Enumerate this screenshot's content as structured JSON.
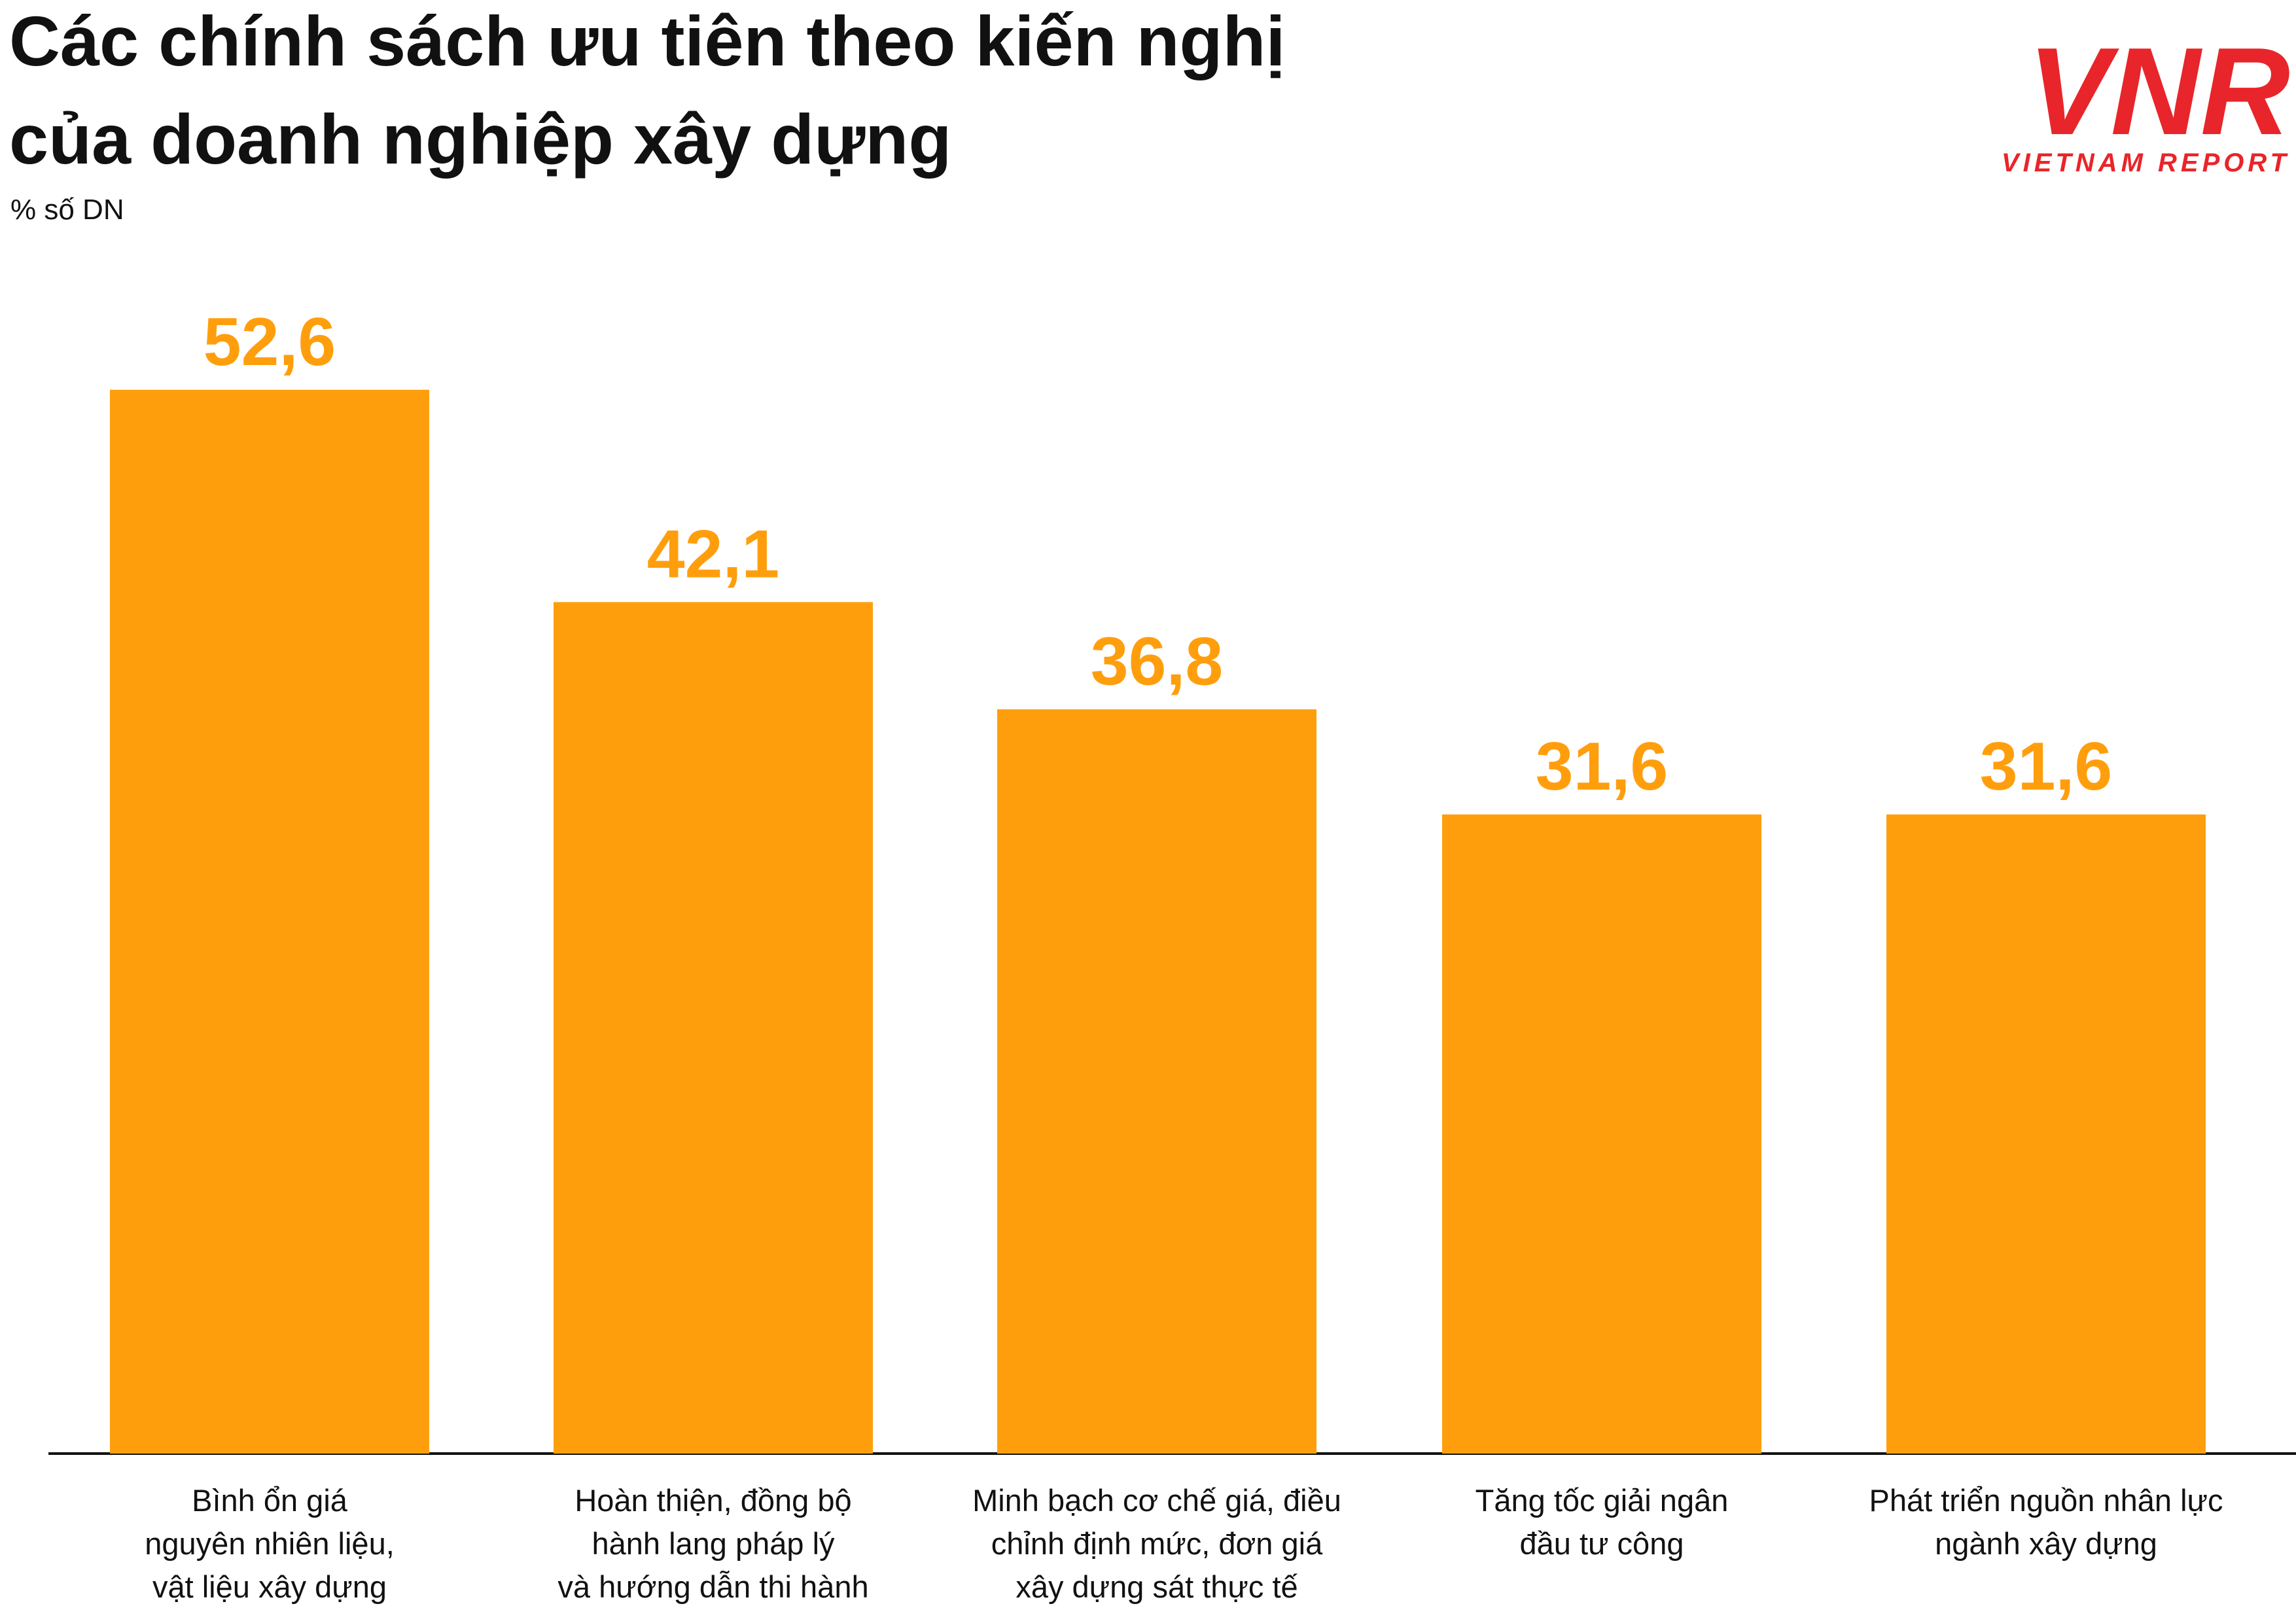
{
  "chart_data": {
    "type": "bar",
    "title": [
      "Các chính sách ưu tiên theo kiến nghị",
      "của doanh nghiệp xây dựng"
    ],
    "subtitle": "% số DN",
    "categories": [
      [
        "Bình ổn giá",
        "nguyên nhiên liệu,",
        "vật liệu xây dựng"
      ],
      [
        "Hoàn thiện, đồng bộ",
        "hành lang pháp lý",
        "và hướng dẫn thi hành"
      ],
      [
        "Minh bạch cơ chế giá, điều",
        "chỉnh định mức, đơn giá",
        "xây dựng sát thực tế"
      ],
      [
        "Tăng tốc giải ngân",
        "đầu tư công"
      ],
      [
        "Phát triển nguồn nhân lực",
        "ngành xây dựng"
      ]
    ],
    "values": [
      52.6,
      42.1,
      36.8,
      31.6,
      31.6
    ],
    "value_labels": [
      "52,6",
      "42,1",
      "36,8",
      "31,6",
      "31,6"
    ],
    "color": "#ff9e0d",
    "ylim": [
      0,
      60
    ],
    "grid": false
  },
  "logo": {
    "mark": "VNR",
    "text": "VIETNAM REPORT"
  }
}
